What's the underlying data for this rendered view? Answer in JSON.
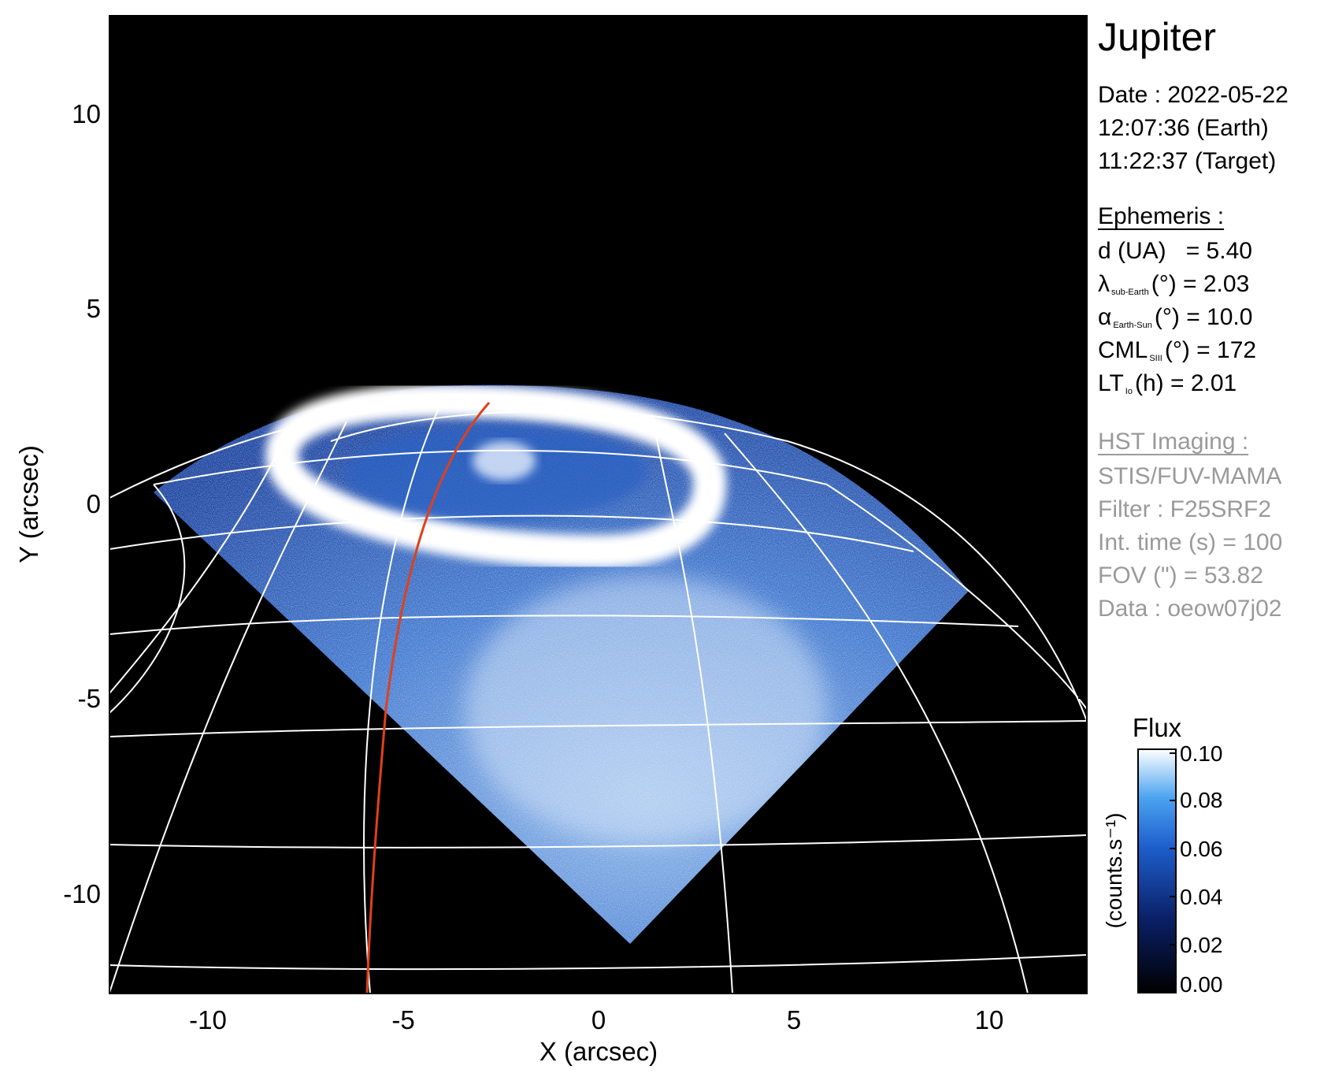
{
  "image": {
    "planet": "Jupiter",
    "date_line": "Date : 2022-05-22",
    "earth_time": "12:07:36 (Earth)",
    "target_time": "11:22:37 (Target)",
    "ephemeris": {
      "heading": "Ephemeris :",
      "d_label": "d (UA)",
      "d_value": "= 5.40",
      "lambda_symbol": "λ",
      "lambda_sub": "sub-Earth",
      "lambda_rest": "(°) = 2.03",
      "alpha_symbol": "α",
      "alpha_sub": "Earth-Sun",
      "alpha_rest": "(°) = 10.0",
      "cml_symbol": "CML",
      "cml_sub": "SIII",
      "cml_rest": "(°) = 172",
      "lt_symbol": "LT",
      "lt_sub": "Io",
      "lt_rest": "(h) = 2.01"
    },
    "hst": {
      "heading": "HST Imaging :",
      "instrument": "STIS/FUV-MAMA",
      "filter": "Filter : F25SRF2",
      "int_time": "Int. time (s) = 100",
      "fov": "FOV (\") = 53.82",
      "data": "Data : oeow07j02"
    },
    "x_axis": {
      "label": "X (arcsec)",
      "ticks": [
        "-10",
        "-5",
        "0",
        "5",
        "10"
      ]
    },
    "y_axis": {
      "label": "Y (arcsec)",
      "ticks": [
        "10",
        "5",
        "0",
        "-5",
        "-10"
      ]
    },
    "colorbar": {
      "title": "Flux",
      "unit": "(counts.s⁻¹)",
      "ticks": [
        "0.10",
        "0.08",
        "0.06",
        "0.04",
        "0.02",
        "0.00"
      ],
      "range": [
        0.0,
        0.1
      ]
    },
    "colors": {
      "background": "#000000",
      "grid": "#ffffff",
      "io_footprint": "#e0401a",
      "emission_low": "#0a1f66",
      "emission_mid": "#2f6fd6",
      "emission_high": "#ffffff",
      "hst_text": "#9a9a9a"
    }
  }
}
